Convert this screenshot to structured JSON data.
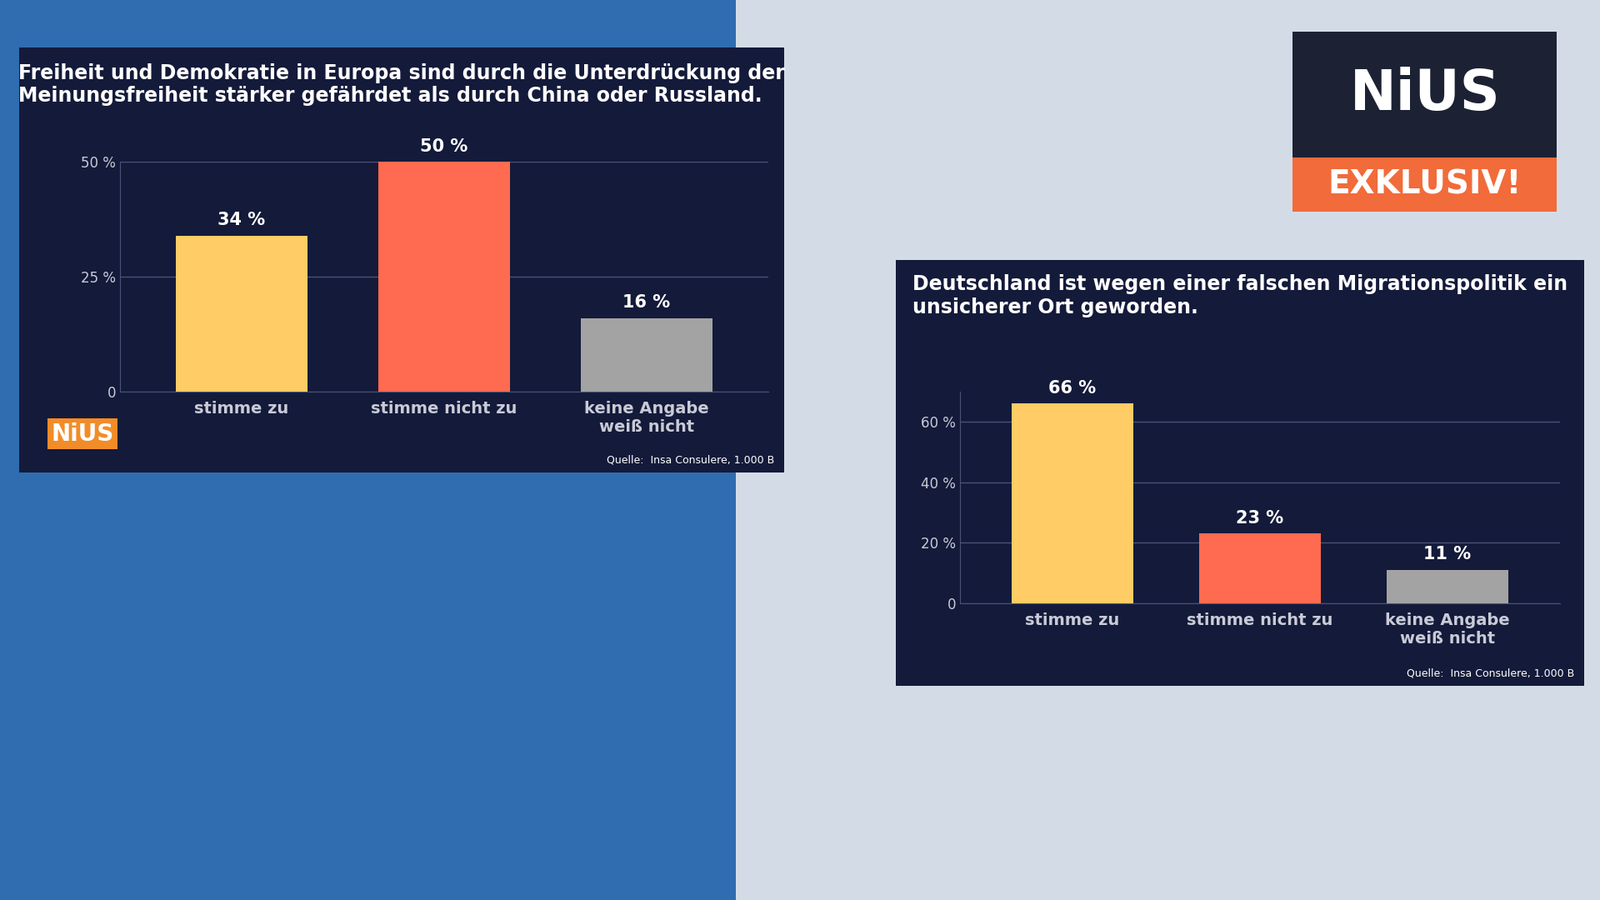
{
  "chart_data": [
    {
      "type": "bar",
      "title": "Freiheit und Demokratie in Europa sind durch die Unterdrückung der Meinungsfreiheit stärker gefährdet als durch China oder Russland.",
      "categories": [
        "stimme zu",
        "stimme nicht zu",
        "keine Angabe\nweiß nicht"
      ],
      "values": [
        34,
        50,
        16
      ],
      "value_labels": [
        "34 %",
        "50 %",
        "16 %"
      ],
      "colors": [
        "#ffcc66",
        "#ff6b50",
        "#a3a3a3"
      ],
      "ylim": [
        0,
        50
      ],
      "yticks": [
        0,
        {
          "value": 25,
          "label": "25 %"
        },
        {
          "value": 50,
          "label": "50 %"
        }
      ],
      "grid": true,
      "data_labels": true,
      "source": "Quelle:  Insa Consulere, 1.000 B"
    },
    {
      "type": "bar",
      "title": "Deutschland ist wegen einer falschen Migrationspolitik ein unsicherer Ort geworden.",
      "categories": [
        "stimme zu",
        "stimme nicht zu",
        "keine Angabe\nweiß nicht"
      ],
      "values": [
        66,
        23,
        11
      ],
      "value_labels": [
        "66 %",
        "23 %",
        "11 %"
      ],
      "colors": [
        "#ffcc66",
        "#ff6b50",
        "#a3a3a3"
      ],
      "ylim": [
        0,
        70
      ],
      "yticks": [
        0,
        {
          "value": 20,
          "label": "20 %"
        },
        {
          "value": 40,
          "label": "40 %"
        },
        {
          "value": 60,
          "label": "60 %"
        }
      ],
      "grid": true,
      "data_labels": true,
      "source": "Quelle:  Insa Consulere, 1.000 B"
    }
  ],
  "branding": {
    "logo": "NiUS",
    "badge": "EXKLUSIV!",
    "chart_logo": "NiUS"
  }
}
